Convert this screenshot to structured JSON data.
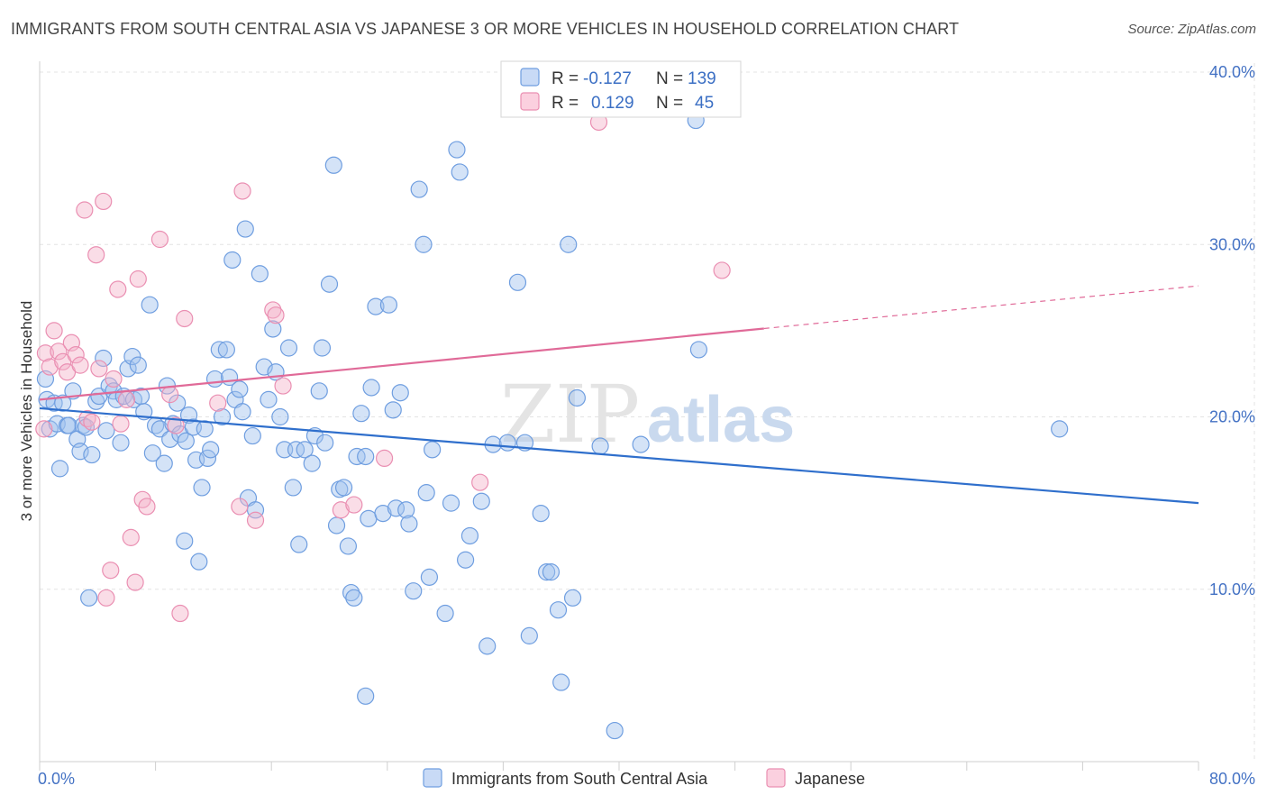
{
  "title": "IMMIGRANTS FROM SOUTH CENTRAL ASIA VS JAPANESE 3 OR MORE VEHICLES IN HOUSEHOLD CORRELATION CHART",
  "source": "Source: ZipAtlas.com",
  "watermark": {
    "zip": "ZIP",
    "atlas": "atlas"
  },
  "legend_top": [
    {
      "r_label": "R = ",
      "r_value": "-0.127",
      "n_label": "N = ",
      "n_value": "139"
    },
    {
      "r_label": "R = ",
      "r_value": "0.129",
      "n_label": "N = ",
      "n_value": "45"
    }
  ],
  "chart_data": {
    "type": "scatter",
    "title": "IMMIGRANTS FROM SOUTH CENTRAL ASIA VS JAPANESE 3 OR MORE VEHICLES IN HOUSEHOLD CORRELATION CHART",
    "xlabel": "",
    "ylabel": "3 or more Vehicles in Household",
    "xlim": [
      0,
      80
    ],
    "ylim": [
      0,
      40
    ],
    "x_tick_labels": [
      "0.0%",
      "80.0%"
    ],
    "y_ticks": [
      10,
      20,
      30,
      40
    ],
    "y_tick_labels": [
      "10.0%",
      "20.0%",
      "30.0%",
      "40.0%"
    ],
    "grid": true,
    "legend_position": "top-center",
    "series": [
      {
        "name": "Immigrants from South Central Asia",
        "color": "#8fb4e8",
        "line_color": "#2f6fcc",
        "trend": {
          "x": [
            0,
            80
          ],
          "y": [
            20.5,
            15.0
          ],
          "dashed_from": null
        },
        "points": [
          [
            0.4,
            22.2
          ],
          [
            0.5,
            21.0
          ],
          [
            0.7,
            19.3
          ],
          [
            1.0,
            20.8
          ],
          [
            1.2,
            19.6
          ],
          [
            1.4,
            17.0
          ],
          [
            1.6,
            20.8
          ],
          [
            1.9,
            19.5
          ],
          [
            2.0,
            19.5
          ],
          [
            2.3,
            21.5
          ],
          [
            2.6,
            18.7
          ],
          [
            2.8,
            18.0
          ],
          [
            3.0,
            19.5
          ],
          [
            3.2,
            19.4
          ],
          [
            3.4,
            9.5
          ],
          [
            3.6,
            17.8
          ],
          [
            3.9,
            20.9
          ],
          [
            4.1,
            21.2
          ],
          [
            4.4,
            23.4
          ],
          [
            4.6,
            19.2
          ],
          [
            4.8,
            21.8
          ],
          [
            5.1,
            21.5
          ],
          [
            5.3,
            21.0
          ],
          [
            5.6,
            18.5
          ],
          [
            5.8,
            21.2
          ],
          [
            6.1,
            22.8
          ],
          [
            6.4,
            23.5
          ],
          [
            6.5,
            21.0
          ],
          [
            6.8,
            23.0
          ],
          [
            7.0,
            21.2
          ],
          [
            7.2,
            20.3
          ],
          [
            7.6,
            26.5
          ],
          [
            7.8,
            17.9
          ],
          [
            8.0,
            19.5
          ],
          [
            8.3,
            19.3
          ],
          [
            8.6,
            17.3
          ],
          [
            8.8,
            21.8
          ],
          [
            9.0,
            18.7
          ],
          [
            9.2,
            19.6
          ],
          [
            9.5,
            20.8
          ],
          [
            9.7,
            19.0
          ],
          [
            10.0,
            12.8
          ],
          [
            10.1,
            18.6
          ],
          [
            10.3,
            20.1
          ],
          [
            10.6,
            19.4
          ],
          [
            10.8,
            17.5
          ],
          [
            11.0,
            11.6
          ],
          [
            11.2,
            15.9
          ],
          [
            11.4,
            19.3
          ],
          [
            11.6,
            17.6
          ],
          [
            11.8,
            18.1
          ],
          [
            12.1,
            22.2
          ],
          [
            12.4,
            23.9
          ],
          [
            12.6,
            20.0
          ],
          [
            12.9,
            23.9
          ],
          [
            13.1,
            22.3
          ],
          [
            13.3,
            29.1
          ],
          [
            13.5,
            21.0
          ],
          [
            13.8,
            21.6
          ],
          [
            14.0,
            20.3
          ],
          [
            14.2,
            30.9
          ],
          [
            14.4,
            15.3
          ],
          [
            14.7,
            18.9
          ],
          [
            14.9,
            14.6
          ],
          [
            15.2,
            28.3
          ],
          [
            15.5,
            22.9
          ],
          [
            15.8,
            21.0
          ],
          [
            16.1,
            25.1
          ],
          [
            16.3,
            22.6
          ],
          [
            16.6,
            20.0
          ],
          [
            16.9,
            18.1
          ],
          [
            17.2,
            24.0
          ],
          [
            17.5,
            15.9
          ],
          [
            17.7,
            18.1
          ],
          [
            17.9,
            12.6
          ],
          [
            18.3,
            18.1
          ],
          [
            18.8,
            17.3
          ],
          [
            19.0,
            18.9
          ],
          [
            19.3,
            21.5
          ],
          [
            19.5,
            24.0
          ],
          [
            19.7,
            18.5
          ],
          [
            20.0,
            27.7
          ],
          [
            20.3,
            34.6
          ],
          [
            20.5,
            13.7
          ],
          [
            20.7,
            15.8
          ],
          [
            21.0,
            15.9
          ],
          [
            21.3,
            12.5
          ],
          [
            21.5,
            9.8
          ],
          [
            21.7,
            9.5
          ],
          [
            21.9,
            17.7
          ],
          [
            22.2,
            20.2
          ],
          [
            22.5,
            17.7
          ],
          [
            22.7,
            14.1
          ],
          [
            22.9,
            21.7
          ],
          [
            23.2,
            26.4
          ],
          [
            23.7,
            14.4
          ],
          [
            24.1,
            26.5
          ],
          [
            24.4,
            20.4
          ],
          [
            24.6,
            14.7
          ],
          [
            24.9,
            21.4
          ],
          [
            25.3,
            14.6
          ],
          [
            25.5,
            13.8
          ],
          [
            25.8,
            9.9
          ],
          [
            26.2,
            33.2
          ],
          [
            26.5,
            30.0
          ],
          [
            26.7,
            15.6
          ],
          [
            26.9,
            10.7
          ],
          [
            27.1,
            18.1
          ],
          [
            28.0,
            8.6
          ],
          [
            28.4,
            15.0
          ],
          [
            28.8,
            35.5
          ],
          [
            29.0,
            34.2
          ],
          [
            29.4,
            11.7
          ],
          [
            29.7,
            13.1
          ],
          [
            30.5,
            15.1
          ],
          [
            30.9,
            6.7
          ],
          [
            31.3,
            18.4
          ],
          [
            32.3,
            18.5
          ],
          [
            33.0,
            27.8
          ],
          [
            33.8,
            7.3
          ],
          [
            34.6,
            14.4
          ],
          [
            35.0,
            11.0
          ],
          [
            35.3,
            11.0
          ],
          [
            35.8,
            8.8
          ],
          [
            36.0,
            4.6
          ],
          [
            36.5,
            30.0
          ],
          [
            36.8,
            9.5
          ],
          [
            37.1,
            21.1
          ],
          [
            38.7,
            18.3
          ],
          [
            39.7,
            1.8
          ],
          [
            41.5,
            18.4
          ],
          [
            45.3,
            37.2
          ],
          [
            45.5,
            23.9
          ],
          [
            70.4,
            19.3
          ],
          [
            22.5,
            3.8
          ],
          [
            33.5,
            18.5
          ]
        ]
      },
      {
        "name": "Japanese",
        "color": "#f2a7c0",
        "line_color": "#e06a98",
        "trend": {
          "x": [
            0,
            80
          ],
          "y": [
            21.0,
            27.6
          ],
          "dashed_from": 50
        },
        "points": [
          [
            0.3,
            19.3
          ],
          [
            0.4,
            23.7
          ],
          [
            0.7,
            22.9
          ],
          [
            1.0,
            25.0
          ],
          [
            1.3,
            23.8
          ],
          [
            1.6,
            23.2
          ],
          [
            1.9,
            22.6
          ],
          [
            2.2,
            24.3
          ],
          [
            2.5,
            23.6
          ],
          [
            2.8,
            23.0
          ],
          [
            3.1,
            32.0
          ],
          [
            3.3,
            19.9
          ],
          [
            3.6,
            19.7
          ],
          [
            3.9,
            29.4
          ],
          [
            4.1,
            22.8
          ],
          [
            4.4,
            32.5
          ],
          [
            4.6,
            9.5
          ],
          [
            4.9,
            11.1
          ],
          [
            5.1,
            22.2
          ],
          [
            5.4,
            27.4
          ],
          [
            5.6,
            19.6
          ],
          [
            6.0,
            21.0
          ],
          [
            6.3,
            13.0
          ],
          [
            6.6,
            10.4
          ],
          [
            6.8,
            28.0
          ],
          [
            7.1,
            15.2
          ],
          [
            7.4,
            14.8
          ],
          [
            8.3,
            30.3
          ],
          [
            9.0,
            21.3
          ],
          [
            9.4,
            19.5
          ],
          [
            9.7,
            8.6
          ],
          [
            10.0,
            25.7
          ],
          [
            12.3,
            20.8
          ],
          [
            13.8,
            14.8
          ],
          [
            14.0,
            33.1
          ],
          [
            14.9,
            14.0
          ],
          [
            16.1,
            26.2
          ],
          [
            16.3,
            25.9
          ],
          [
            16.8,
            21.8
          ],
          [
            20.8,
            14.6
          ],
          [
            21.7,
            14.9
          ],
          [
            23.8,
            17.6
          ],
          [
            30.4,
            16.2
          ],
          [
            38.6,
            37.1
          ],
          [
            47.1,
            28.5
          ]
        ]
      }
    ]
  },
  "bottom_legend": [
    {
      "label": "Immigrants from South Central Asia"
    },
    {
      "label": "Japanese"
    }
  ]
}
